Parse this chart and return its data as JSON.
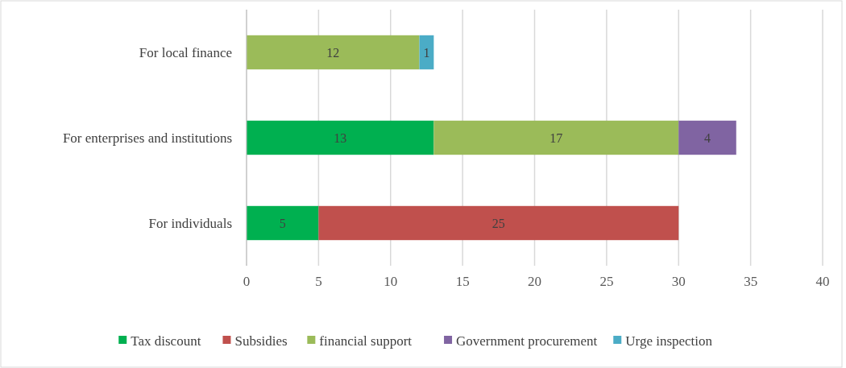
{
  "chart_data": {
    "type": "bar",
    "orientation": "horizontal",
    "stacked": true,
    "categories": [
      "For local finance",
      "For enterprises and institutions",
      "For individuals"
    ],
    "series": [
      {
        "name": "Tax discount",
        "color": "#00b050",
        "values": [
          null,
          13,
          5
        ]
      },
      {
        "name": "Subsidies",
        "color": "#c0504d",
        "values": [
          null,
          null,
          25
        ]
      },
      {
        "name": "financial support",
        "color": "#9bbb59",
        "values": [
          12,
          17,
          null
        ]
      },
      {
        "name": "Government procurement",
        "color": "#8064a2",
        "values": [
          null,
          4,
          null
        ]
      },
      {
        "name": "Urge inspection",
        "color": "#4bacc6",
        "values": [
          1,
          null,
          null
        ]
      }
    ],
    "xlim": [
      0,
      40
    ],
    "xticks": [
      0,
      5,
      10,
      15,
      20,
      25,
      30,
      35,
      40
    ],
    "grid": "x",
    "legend": "bottom",
    "data_labels": true
  }
}
